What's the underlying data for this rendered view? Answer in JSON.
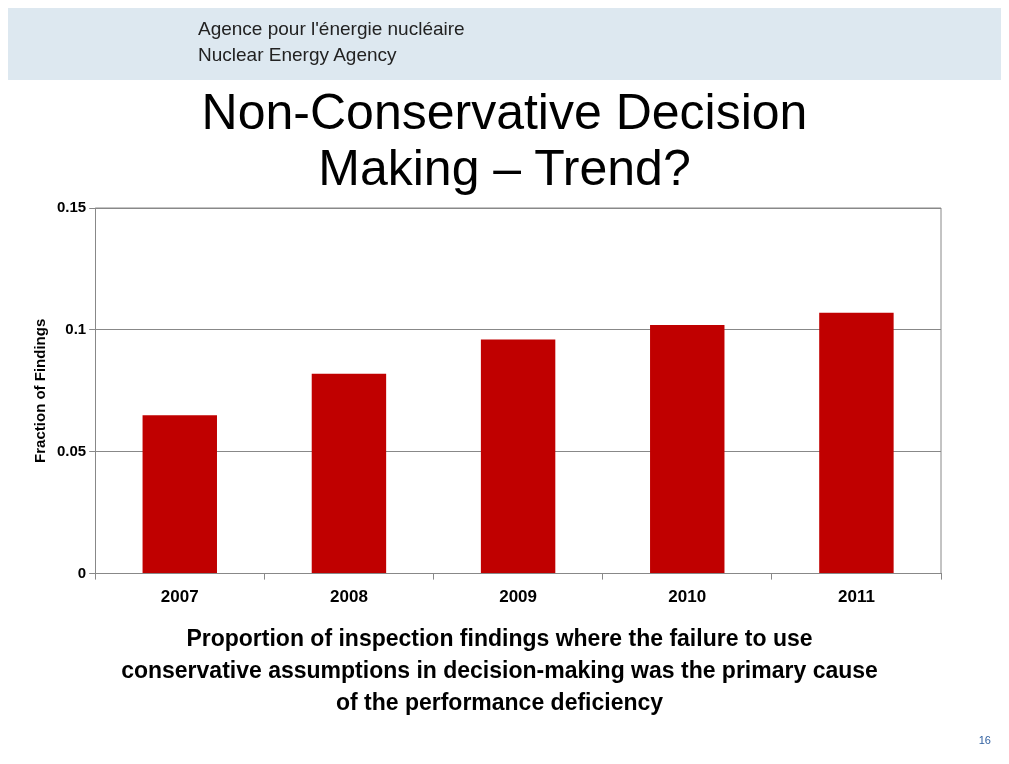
{
  "chart_data": {
    "type": "bar",
    "title": "Non-Conservative Decision Making – Trend?",
    "ylabel": "Fraction of Findings",
    "categories": [
      "2007",
      "2008",
      "2009",
      "2010",
      "2011"
    ],
    "values": [
      0.065,
      0.082,
      0.096,
      0.102,
      0.107
    ],
    "color": "#c00000",
    "ylim": [
      0,
      0.15
    ],
    "yticks": [
      0,
      0.05,
      0.1,
      0.15
    ],
    "grid": "y",
    "annotations": [
      "Agence pour l'énergie nucléaire",
      "Nuclear Energy Agency",
      "Proportion of inspection findings where the failure to use conservative assumptions in decision-making was the primary cause of the performance deficiency",
      "16"
    ]
  }
}
